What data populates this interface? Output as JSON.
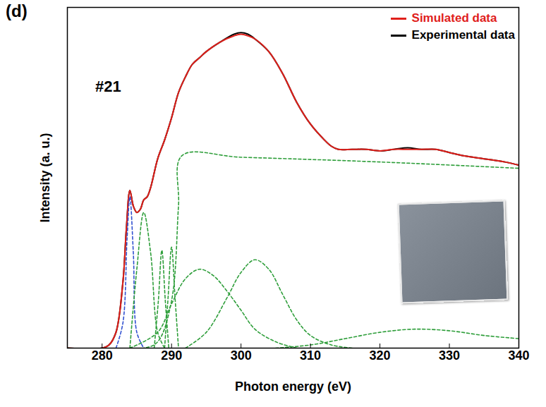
{
  "chart_data": {
    "type": "line",
    "panel_label": "(d)",
    "annotations": [
      "#21"
    ],
    "x_label": "Photon energy (eV)",
    "y_label": "Intensity (a. u.)",
    "xlim": [
      275,
      340
    ],
    "xticks": [
      280,
      290,
      300,
      310,
      320,
      330,
      340
    ],
    "ylim": [
      0,
      108
    ],
    "tick_labels": "x",
    "legend": "top-right",
    "series": [
      {
        "name": "Experimental data",
        "color": "#000000",
        "line_style": "solid",
        "x": [
          275,
          280,
          281,
          282,
          283,
          283.5,
          284,
          284.5,
          285,
          285.5,
          286,
          286.5,
          287,
          288,
          289,
          290,
          291,
          292,
          293,
          294,
          295,
          297,
          299,
          300,
          301,
          302,
          304,
          306,
          308,
          310,
          312,
          313,
          314,
          316,
          318,
          320,
          322,
          324,
          326,
          328,
          330,
          332,
          335,
          338,
          340
        ],
        "values": [
          0,
          0,
          1,
          5,
          21,
          38,
          50,
          45,
          43,
          44,
          47,
          48,
          51,
          60,
          66,
          73,
          81,
          86,
          90,
          92,
          94,
          97,
          99.5,
          100,
          99.5,
          98,
          94,
          87,
          78,
          71,
          66,
          64,
          63,
          63,
          63,
          62.5,
          63,
          63.5,
          63,
          63,
          62,
          61,
          60,
          59,
          58
        ]
      },
      {
        "name": "Simulated data",
        "color": "#e0201b",
        "line_style": "solid",
        "x": [
          275,
          280,
          281,
          282,
          283,
          283.5,
          284,
          284.5,
          285,
          285.5,
          286,
          286.5,
          287,
          288,
          289,
          290,
          291,
          292,
          293,
          294,
          295,
          297,
          299,
          300,
          301,
          302,
          304,
          306,
          308,
          310,
          312,
          313,
          314,
          316,
          318,
          320,
          322,
          324,
          326,
          328,
          330,
          332,
          335,
          338,
          340
        ],
        "values": [
          0,
          0,
          1,
          5,
          21,
          38,
          50,
          45,
          43,
          44,
          47,
          48,
          51,
          60,
          66,
          73,
          81,
          86,
          90,
          92,
          94,
          97,
          99,
          99.5,
          99,
          98,
          94,
          87,
          78,
          71,
          66,
          64,
          63,
          63,
          63,
          62.5,
          63,
          63,
          63,
          63,
          62,
          61,
          60,
          59,
          58
        ]
      },
      {
        "color": "#2e9e3a",
        "line_style": "dashed",
        "x": [
          275,
          286,
          288,
          290,
          291,
          291.5,
          300,
          320,
          340
        ],
        "values": [
          0,
          0,
          2,
          15,
          45,
          61,
          60.5,
          59,
          57
        ]
      },
      {
        "color": "#3050d0",
        "line_style": "dashed",
        "x": [
          282,
          283,
          283.6,
          284,
          284.5,
          285,
          286
        ],
        "values": [
          0,
          8,
          35,
          48,
          30,
          5,
          0
        ]
      },
      {
        "color": "#2e9e3a",
        "line_style": "dashed",
        "x": [
          284,
          285,
          286,
          287,
          288,
          289
        ],
        "values": [
          0,
          25,
          43,
          30,
          5,
          0
        ]
      },
      {
        "color": "#2e9e3a",
        "line_style": "dashed",
        "x": [
          287.5,
          288.1,
          288.6,
          289.1,
          289.6
        ],
        "values": [
          0,
          15,
          31,
          15,
          0
        ]
      },
      {
        "color": "#2e9e3a",
        "line_style": "dashed",
        "x": [
          289,
          289.5,
          290,
          290.5,
          291
        ],
        "values": [
          0,
          16,
          32,
          16,
          0
        ]
      },
      {
        "color": "#2e9e3a",
        "line_style": "dashed",
        "x": [
          284,
          288,
          290,
          292,
          294,
          296,
          298,
          300,
          302,
          305,
          308
        ],
        "values": [
          0,
          5,
          14,
          22,
          25,
          23,
          18,
          12,
          6,
          2,
          0
        ]
      },
      {
        "color": "#2e9e3a",
        "line_style": "dashed",
        "x": [
          292,
          295,
          298,
          300,
          302,
          304,
          306,
          308,
          310,
          313,
          316
        ],
        "values": [
          0,
          5,
          16,
          24,
          28,
          25,
          17,
          9,
          4,
          1,
          0
        ]
      },
      {
        "color": "#2e9e3a",
        "line_style": "dashed",
        "x": [
          305,
          310,
          315,
          320,
          325,
          330,
          335,
          340
        ],
        "values": [
          0,
          1,
          3,
          5,
          6,
          5.5,
          4,
          3
        ]
      }
    ]
  }
}
